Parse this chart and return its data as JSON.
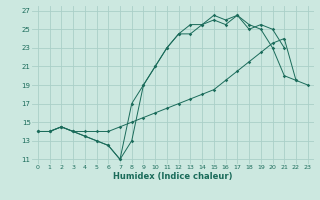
{
  "xlabel": "Humidex (Indice chaleur)",
  "bg_color": "#cce8e0",
  "grid_color": "#aacfc8",
  "line_color": "#1a6b5a",
  "xlim": [
    -0.5,
    23.5
  ],
  "ylim": [
    10.5,
    27.5
  ],
  "xticks": [
    0,
    1,
    2,
    3,
    4,
    5,
    6,
    7,
    8,
    9,
    10,
    11,
    12,
    13,
    14,
    15,
    16,
    17,
    18,
    19,
    20,
    21,
    22,
    23
  ],
  "yticks": [
    11,
    13,
    15,
    17,
    19,
    21,
    23,
    25,
    27
  ],
  "line1_x": [
    0,
    1,
    2,
    3,
    4,
    5,
    6,
    7,
    8,
    9,
    10,
    11,
    12,
    13,
    14,
    15,
    16,
    17,
    18,
    19,
    20,
    21,
    22
  ],
  "line1_y": [
    14.0,
    14.0,
    14.5,
    14.0,
    13.5,
    13.0,
    12.5,
    11.0,
    13.0,
    19.0,
    21.0,
    23.0,
    24.5,
    24.5,
    25.5,
    26.5,
    26.0,
    26.5,
    25.5,
    25.0,
    23.0,
    20.0,
    19.5
  ],
  "line2_x": [
    0,
    1,
    2,
    3,
    4,
    5,
    6,
    7,
    8,
    9,
    10,
    11,
    12,
    13,
    14,
    15,
    16,
    17,
    18,
    19,
    20,
    21
  ],
  "line2_y": [
    14.0,
    14.0,
    14.5,
    14.0,
    13.5,
    13.0,
    12.5,
    11.0,
    17.0,
    19.0,
    21.0,
    23.0,
    24.5,
    25.5,
    25.5,
    26.0,
    25.5,
    26.5,
    25.0,
    25.5,
    25.0,
    23.0
  ],
  "line3_x": [
    0,
    1,
    2,
    3,
    4,
    5,
    6,
    7,
    8,
    9,
    10,
    11,
    12,
    13,
    14,
    15,
    16,
    17,
    18,
    19,
    20,
    21,
    22,
    23
  ],
  "line3_y": [
    14.0,
    14.0,
    14.5,
    14.0,
    14.0,
    14.0,
    14.0,
    14.5,
    15.0,
    15.5,
    16.0,
    16.5,
    17.0,
    17.5,
    18.0,
    18.5,
    19.5,
    20.5,
    21.5,
    22.5,
    23.5,
    24.0,
    19.5,
    19.0
  ]
}
